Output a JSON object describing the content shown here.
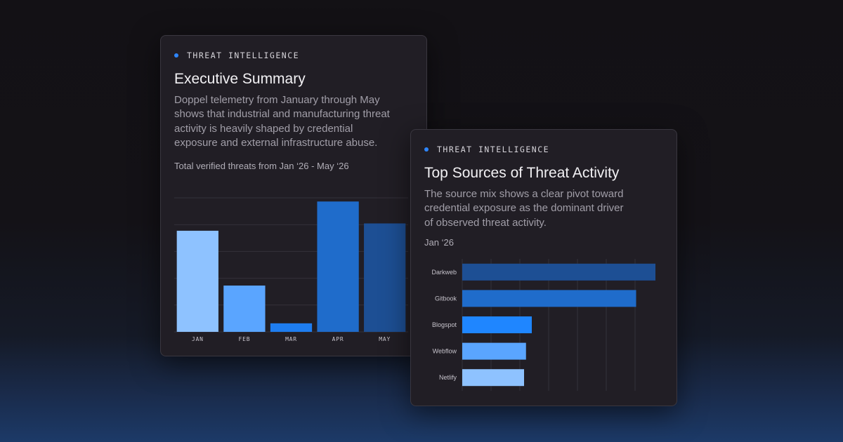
{
  "colors": {
    "accent_dot": "#2e86ff",
    "grid": "#34313a",
    "axis_text": "#c7c4cc"
  },
  "cards": [
    {
      "eyebrow": "THREAT INTELLIGENCE",
      "title": "Executive Summary",
      "description": "Doppel telemetry from January through May shows that industrial and manufacturing threat activity is heavily shaped by credential exposure and external infrastructure abuse.",
      "subtitle": "Total verified threats from Jan ‘26 - May ‘26"
    },
    {
      "eyebrow": "THREAT INTELLIGENCE",
      "title": "Top Sources of Threat Activity",
      "description": "The source mix shows a clear pivot toward credential exposure as the dominant driver of observed threat activity.",
      "subtitle": "Jan ‘26"
    }
  ],
  "chart_data": [
    {
      "type": "bar",
      "orientation": "vertical",
      "categories": [
        "JAN",
        "FEB",
        "MAR",
        "APR",
        "MAY"
      ],
      "values": [
        83,
        38,
        7,
        107,
        89
      ],
      "colors": [
        "#8ec2ff",
        "#5aa5ff",
        "#1e7df0",
        "#1f6ccb",
        "#1d4f94"
      ],
      "ylim": [
        0,
        110
      ],
      "grid": true
    },
    {
      "type": "bar",
      "orientation": "horizontal",
      "categories": [
        "Darkweb",
        "Gitbook",
        "Blogspot",
        "Webflow",
        "Netlify"
      ],
      "values": [
        100,
        90,
        36,
        33,
        32
      ],
      "colors": [
        "#1d4f94",
        "#1f6ccb",
        "#1f86ff",
        "#5aa5ff",
        "#8ec2ff"
      ],
      "xlim": [
        0,
        100
      ],
      "grid": true
    }
  ]
}
